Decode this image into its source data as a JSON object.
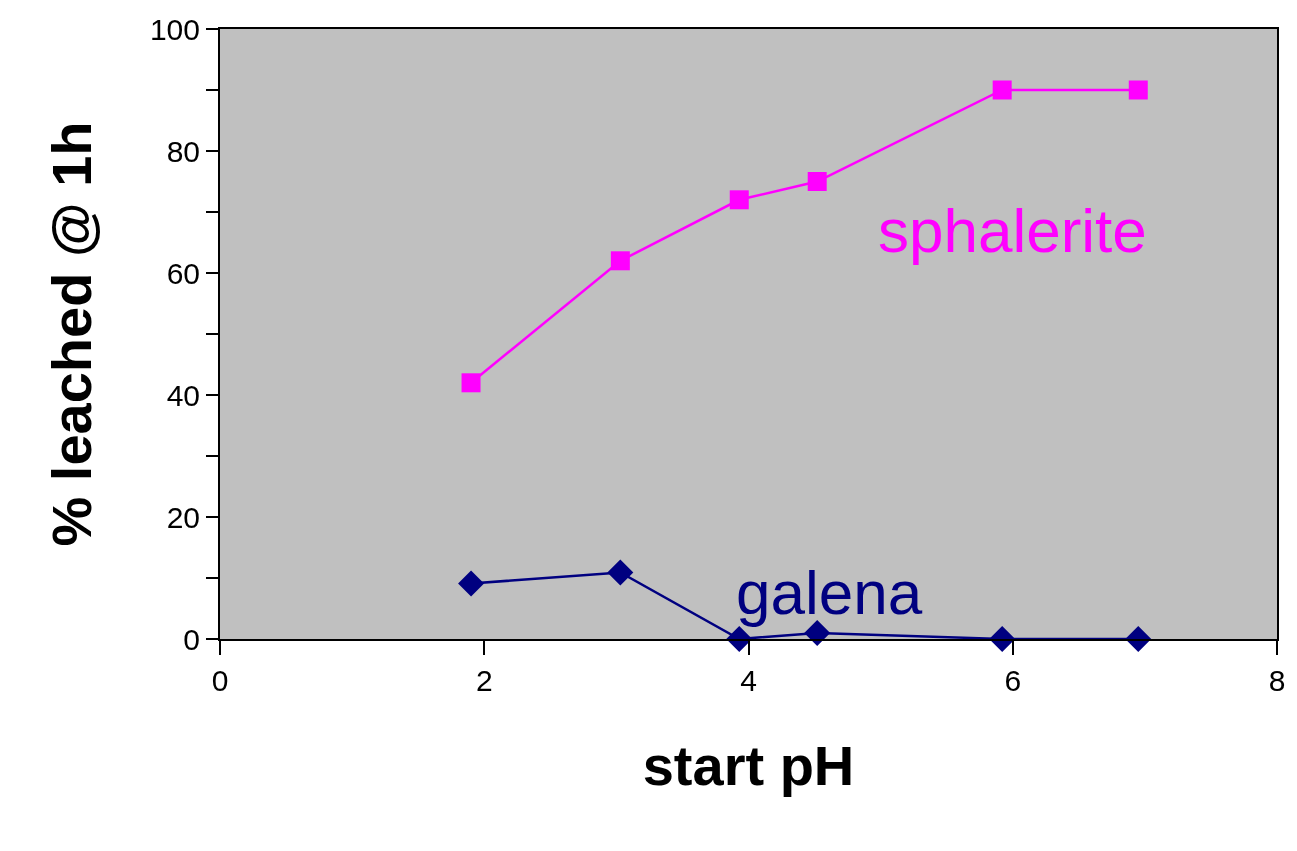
{
  "chart_data": {
    "type": "line",
    "xlabel": "start pH",
    "ylabel": "% leached @ 1h",
    "x": [
      1.9,
      3.03,
      3.93,
      4.52,
      5.92,
      6.95
    ],
    "series": [
      {
        "name": "sphalerite",
        "color": "#ff00ff",
        "marker": "square",
        "values": [
          42,
          62,
          72,
          75,
          90,
          90
        ]
      },
      {
        "name": "galena",
        "color": "#000080",
        "marker": "diamond",
        "values": [
          9.1,
          10.9,
          0,
          1,
          0,
          0
        ]
      }
    ],
    "xlim": [
      0,
      8
    ],
    "xticks": [
      0,
      2,
      4,
      6,
      8
    ],
    "ylim": [
      0,
      100
    ],
    "yticks": [
      0,
      {
        "value": 10,
        "label": null
      },
      20,
      {
        "value": 30,
        "label": null
      },
      40,
      {
        "value": 50,
        "label": null
      },
      60,
      {
        "value": 70,
        "label": null
      },
      80,
      {
        "value": 90,
        "label": null
      },
      100
    ],
    "grid": false,
    "legend": false,
    "line_style": "solid"
  }
}
